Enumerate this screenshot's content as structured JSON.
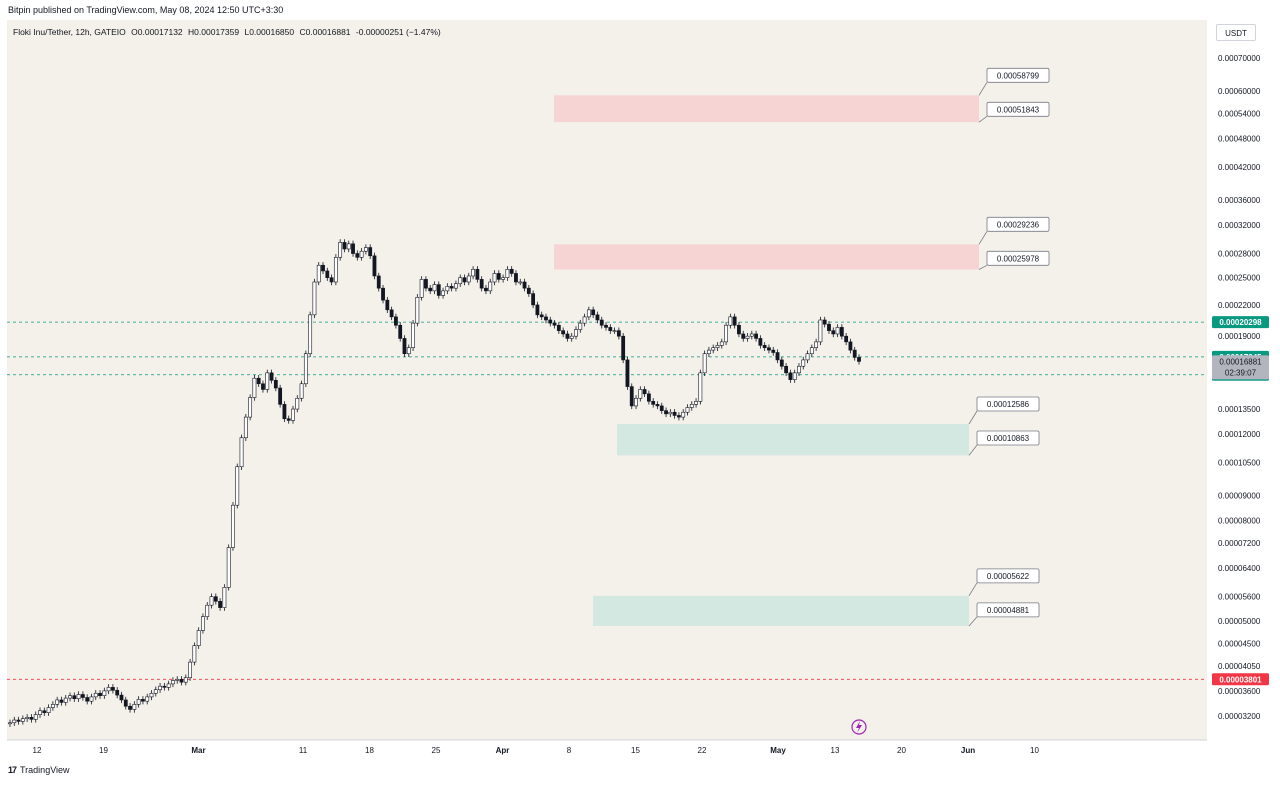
{
  "header": {
    "published_text": "Bitpin published on TradingView.com, May 08, 2024 12:50 UTC+3:30"
  },
  "symbol": {
    "name": "Floki Inu/Tether, 12h, GATEIO",
    "open": "O0.00017132",
    "high": "H0.00017359",
    "low": "L0.00016850",
    "close": "C0.00016881",
    "change": "-0.00000251 (−1.47%)"
  },
  "currency_label": "USDT",
  "footer": {
    "logo": "17",
    "brand": "TradingView"
  },
  "chart_data": {
    "type": "candlestick",
    "scale": "log",
    "x_ticks": [
      "12",
      "19",
      "Mar",
      "11",
      "18",
      "25",
      "Apr",
      "8",
      "15",
      "22",
      "May",
      "13",
      "20",
      "Jun",
      "10"
    ],
    "y_ticks": [
      "0.00070000",
      "0.00060000",
      "0.00054000",
      "0.00048000",
      "0.00042000",
      "0.00036000",
      "0.00032000",
      "0.00028000",
      "0.00025000",
      "0.00022000",
      "0.00019000",
      "0.00013500",
      "0.00012000",
      "0.00010500",
      "0.00009000",
      "0.00008000",
      "0.00007200",
      "0.00006400",
      "0.00005600",
      "0.00005000",
      "0.00004500",
      "0.00004050",
      "0.00003600",
      "0.00003200"
    ],
    "closes": [
      3.1e-05,
      3.14e-05,
      3.12e-05,
      3.16e-05,
      3.18e-05,
      3.15e-05,
      3.22e-05,
      3.28e-05,
      3.25e-05,
      3.33e-05,
      3.38e-05,
      3.45e-05,
      3.41e-05,
      3.48e-05,
      3.52e-05,
      3.47e-05,
      3.54e-05,
      3.49e-05,
      3.43e-05,
      3.5e-05,
      3.56e-05,
      3.52e-05,
      3.6e-05,
      3.66e-05,
      3.61e-05,
      3.53e-05,
      3.45e-05,
      3.35e-05,
      3.3e-05,
      3.38e-05,
      3.46e-05,
      3.43e-05,
      3.5e-05,
      3.56e-05,
      3.62e-05,
      3.68e-05,
      3.66e-05,
      3.72e-05,
      3.78e-05,
      3.8e-05,
      3.75e-05,
      3.83e-05,
      4.12e-05,
      4.45e-05,
      4.78e-05,
      5.1e-05,
      5.38e-05,
      5.6e-05,
      5.48e-05,
      5.32e-05,
      5.85e-05,
      7.05e-05,
      8.6e-05,
      0.000103,
      0.000118,
      0.00013,
      0.0001425,
      0.000156,
      0.000152,
      0.000148,
      0.00016,
      0.0001545,
      0.000149,
      0.000138,
      0.000129,
      0.000128,
      0.000135,
      0.000142,
      0.000152,
      0.000175,
      0.00021,
      0.000245,
      0.000265,
      0.000258,
      0.00025,
      0.000245,
      0.000275,
      0.000295,
      0.000286,
      0.000293,
      0.00028,
      0.000275,
      0.000283,
      0.000288,
      0.000277,
      0.000252,
      0.000238,
      0.000225,
      0.000215,
      0.000208,
      0.0002,
      0.000188,
      0.000175,
      0.00018,
      0.000202,
      0.000228,
      0.000248,
      0.000238,
      0.000235,
      0.000242,
      0.00023,
      0.000235,
      0.00024,
      0.000238,
      0.000243,
      0.00025,
      0.000245,
      0.000252,
      0.00026,
      0.000248,
      0.000238,
      0.000235,
      0.000245,
      0.000255,
      0.000248,
      0.00025,
      0.00026,
      0.000255,
      0.000245,
      0.000245,
      0.000238,
      0.000232,
      0.00022,
      0.00021,
      0.000208,
      0.000205,
      0.000202,
      0.0002,
      0.000195,
      0.000192,
      0.000188,
      0.00019,
      0.000196,
      0.000202,
      0.000208,
      0.000215,
      0.00021,
      0.000205,
      0.0002,
      0.000198,
      0.000195,
      0.000195,
      0.00019,
      0.00017,
      0.00015,
      0.000137,
      0.000142,
      0.000148,
      0.000145,
      0.00014,
      0.000138,
      0.000137,
      0.000134,
      0.000132,
      0.000133,
      0.000131,
      0.00013,
      0.000133,
      0.000136,
      0.000138,
      0.00014,
      0.00016,
      0.000175,
      0.000178,
      0.00018,
      0.000182,
      0.000185,
      0.0002,
      0.000208,
      0.0002,
      0.000192,
      0.000188,
      0.00019,
      0.000192,
      0.000188,
      0.000182,
      0.00018,
      0.000178,
      0.000176,
      0.00017,
      0.000165,
      0.00016,
      0.000155,
      0.00016,
      0.000165,
      0.00017,
      0.000175,
      0.00018,
      0.000185,
      0.000205,
      0.000201,
      0.000195,
      0.000192,
      0.000198,
      0.00019,
      0.000185,
      0.000178,
      0.000172,
      0.0001688
    ],
    "zones": [
      {
        "color": "#f7d4d4",
        "top": 0.00058799,
        "bottom": 0.00051843,
        "label_top": "0.00058799",
        "label_bottom": "0.00051843"
      },
      {
        "color": "#f7d4d4",
        "top": 0.00029236,
        "bottom": 0.00025978,
        "label_top": "0.00029236",
        "label_bottom": "0.00025978"
      },
      {
        "color": "#d3e8e1",
        "top": 0.00012586,
        "bottom": 0.00010863,
        "label_top": "0.00012586",
        "label_bottom": "0.00010863"
      },
      {
        "color": "#d3e8e1",
        "top": 5.622e-05,
        "bottom": 4.881e-05,
        "label_top": "0.00005622",
        "label_bottom": "0.00004881"
      }
    ],
    "levels": [
      {
        "value": 0.00020298,
        "label": "0.00020298",
        "color": "#089981",
        "style": "dashed"
      },
      {
        "value": 0.00017245,
        "label": "0.00017245",
        "color": "#089981",
        "style": "dashed"
      },
      {
        "value": 0.00015859,
        "label": "0.00015859",
        "color": "#089981",
        "style": "dashed"
      },
      {
        "value": 3.801e-05,
        "label": "0.00003801",
        "color": "#f23645",
        "style": "dashed"
      }
    ],
    "current_price": {
      "value": 0.00016881,
      "label": "0.00016881",
      "countdown": "02:39:07"
    }
  }
}
